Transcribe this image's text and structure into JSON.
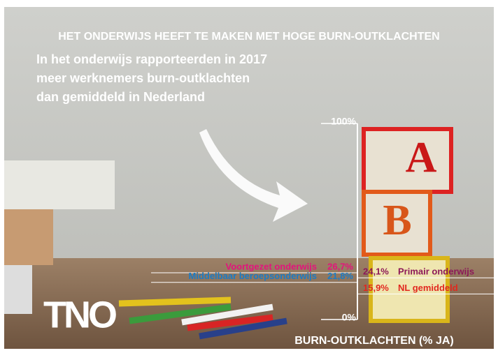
{
  "chart_data": {
    "type": "marker",
    "title": "HET ONDERWIJS HEEFT TE MAKEN MET HOGE BURN-OUTKLACHTEN",
    "subtitle": [
      "In het onderwijs rapporteerden in 2017",
      "meer werknemers burn-outklachten",
      "dan gemiddeld in Nederland"
    ],
    "categories": [
      "Voortgezet onderwijs",
      "Primair onderwijs",
      "Middelbaar beroepsonderwijs",
      "NL gemiddeld"
    ],
    "values": [
      26.7,
      24.1,
      21.8,
      15.9
    ],
    "value_labels": [
      "26,7%",
      "24,1%",
      "21,8%",
      "15,9%"
    ],
    "colors": [
      "#e3147c",
      "#8c1858",
      "#1b7cc6",
      "#e2281f"
    ],
    "ylim": [
      0,
      100
    ],
    "yticks": [
      {
        "value": 0,
        "label": "0%"
      },
      {
        "value": 100,
        "label": "100%"
      }
    ],
    "ylabel": "BURN-OUTKLACHTEN (% JA)",
    "logo": "TNO"
  }
}
